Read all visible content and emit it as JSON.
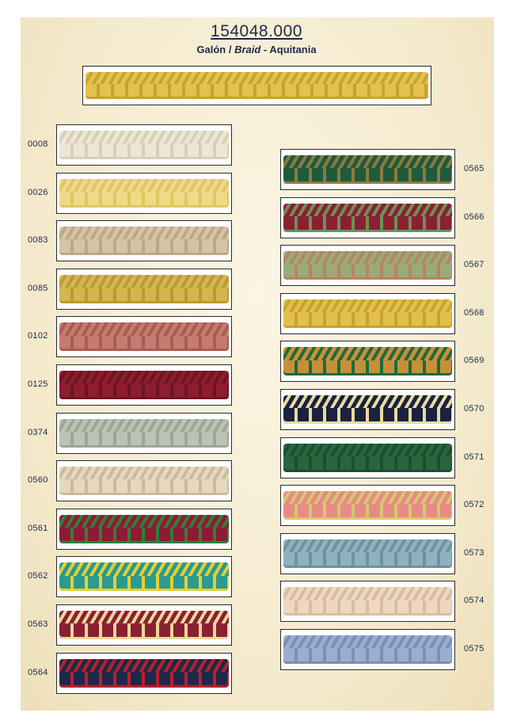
{
  "header": {
    "code": "154048.000",
    "name_es": "Galón / ",
    "name_en": "Braid",
    "collection": " - Aquitania"
  },
  "left_column": [
    {
      "code": "0008",
      "color": "#ece7d5",
      "accent": "#d8d0b6"
    },
    {
      "code": "0026",
      "color": "#f0d987",
      "accent": "#e2c664"
    },
    {
      "code": "0083",
      "color": "#d8c2a6",
      "accent": "#b9a98a"
    },
    {
      "code": "0085",
      "color": "#d5b64e",
      "accent": "#b99a35"
    },
    {
      "code": "0102",
      "color": "#c77a6e",
      "accent": "#a55d55"
    },
    {
      "code": "0125",
      "color": "#8d1d2f",
      "accent": "#6e1423"
    },
    {
      "code": "0374",
      "color": "#bcc2b6",
      "accent": "#9ea697"
    },
    {
      "code": "0560",
      "color": "#e5d8bf",
      "accent": "#cbbb9d"
    },
    {
      "code": "0561",
      "color": "#8c1c34",
      "accent": "#2f7f3a"
    },
    {
      "code": "0562",
      "color": "#2a9b8f",
      "accent": "#e6cf33"
    },
    {
      "code": "0563",
      "color": "#8b1f34",
      "accent": "#e8d79a"
    },
    {
      "code": "0564",
      "color": "#1e2848",
      "accent": "#b81f2c"
    }
  ],
  "right_column": [
    {
      "code": "0565",
      "color": "#1f5a3a",
      "accent": "#8c7a3f"
    },
    {
      "code": "0566",
      "color": "#8a1f33",
      "accent": "#6e8f55"
    },
    {
      "code": "0567",
      "color": "#9aaa7b",
      "accent": "#b88560"
    },
    {
      "code": "0568",
      "color": "#e2c04a",
      "accent": "#c9a233"
    },
    {
      "code": "0569",
      "color": "#c88f3a",
      "accent": "#1d6b3c"
    },
    {
      "code": "0570",
      "color": "#1b2140",
      "accent": "#e7dc9e"
    },
    {
      "code": "0571",
      "color": "#26663d",
      "accent": "#1c4e2e"
    },
    {
      "code": "0572",
      "color": "#e88b84",
      "accent": "#d5c770"
    },
    {
      "code": "0573",
      "color": "#8eb2be",
      "accent": "#6d93a1"
    },
    {
      "code": "0574",
      "color": "#eed8c1",
      "accent": "#d8bda2"
    },
    {
      "code": "0575",
      "color": "#9aaecf",
      "accent": "#7d8fb3"
    }
  ],
  "hero": {
    "color": "#e3c24f",
    "accent": "#caa232"
  }
}
